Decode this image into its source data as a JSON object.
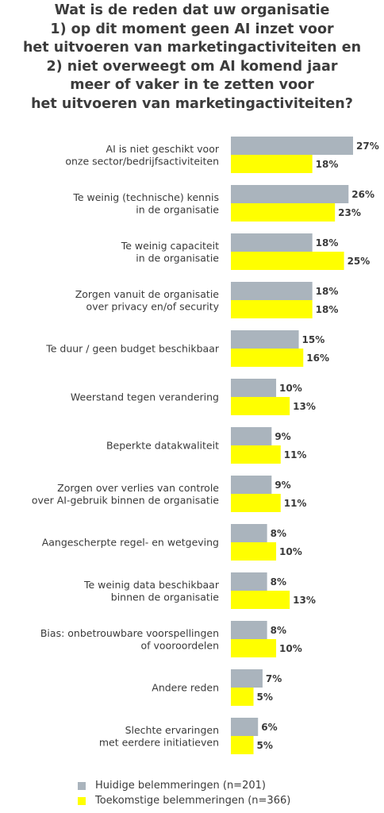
{
  "colors": {
    "current": "#aab4bd",
    "future": "#ffff00",
    "text": "#3a3a3a"
  },
  "chart_data": {
    "type": "bar",
    "orientation": "horizontal",
    "title_lines": [
      "Wat is de reden dat uw organisatie",
      "1) op dit moment geen AI inzet voor",
      "het uitvoeren van marketingactiviteiten en",
      "2) niet overweegt om AI komend jaar",
      "meer of vaker in te zetten voor",
      "het uitvoeren van marketingactiviteiten?"
    ],
    "title": "Wat is de reden dat uw organisatie 1) op dit moment geen AI inzet voor het uitvoeren van marketingactiviteiten en 2) niet overweegt om AI komend jaar meer of vaker in te zetten voor het uitvoeren van marketingactiviteiten?",
    "categories": [
      [
        "AI is niet geschikt voor",
        "onze sector/bedrijfsactiviteiten"
      ],
      [
        "Te weinig (technische) kennis",
        "in de organisatie"
      ],
      [
        "Te weinig capaciteit",
        "in de organisatie"
      ],
      [
        "Zorgen vanuit de organisatie",
        "over privacy en/of security"
      ],
      [
        "Te duur / geen budget beschikbaar"
      ],
      [
        "Weerstand tegen verandering"
      ],
      [
        "Beperkte datakwaliteit"
      ],
      [
        "Zorgen over verlies van controle",
        "over AI-gebruik binnen de organisatie"
      ],
      [
        "Aangescherpte regel- en wetgeving"
      ],
      [
        "Te weinig data beschikbaar",
        "binnen de organisatie"
      ],
      [
        "Bias: onbetrouwbare voorspellingen",
        "of vooroordelen"
      ],
      [
        "Andere reden"
      ],
      [
        "Slechte ervaringen",
        "met eerdere initiatieven"
      ]
    ],
    "series": [
      {
        "name": "Huidige belemmeringen (n=201)",
        "color": "#aab4bd",
        "values": [
          27,
          26,
          18,
          18,
          15,
          10,
          9,
          9,
          8,
          8,
          8,
          7,
          6
        ]
      },
      {
        "name": "Toekomstige belemmeringen (n=366)",
        "color": "#ffff00",
        "values": [
          18,
          23,
          25,
          18,
          16,
          13,
          11,
          11,
          10,
          13,
          10,
          5,
          5
        ]
      }
    ],
    "value_suffix": "%",
    "xlim": [
      0,
      27
    ],
    "grid": false,
    "legend_position": "bottom"
  }
}
